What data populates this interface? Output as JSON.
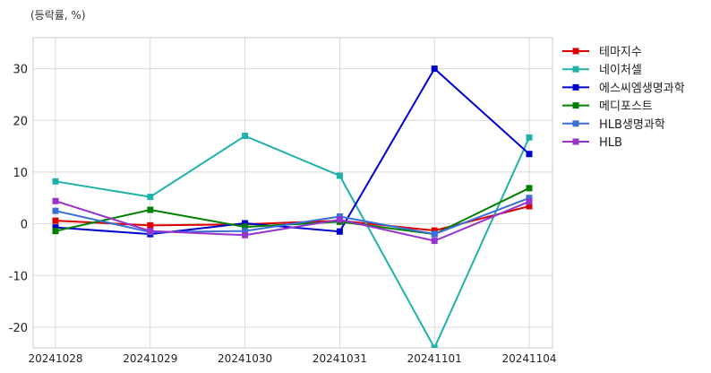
{
  "chart_data": {
    "type": "line",
    "unit_label": "(등락률, %)",
    "categories": [
      "20241028",
      "20241029",
      "20241030",
      "20241031",
      "20241101",
      "20241104"
    ],
    "ylim": [
      -24,
      36
    ],
    "yticks": [
      30,
      20,
      10,
      0,
      -10,
      -20
    ],
    "grid": true,
    "legend_position": "right",
    "series": [
      {
        "name": "테마지수",
        "color": "#dd0000",
        "values": [
          0.6,
          -0.3,
          -0.1,
          0.6,
          -1.3,
          3.4
        ]
      },
      {
        "name": "네이처셀",
        "color": "#20b2aa",
        "values": [
          8.2,
          5.2,
          17.0,
          9.3,
          -24.0,
          16.7
        ]
      },
      {
        "name": "에스씨엠생명과학",
        "color": "#0000cc",
        "values": [
          -0.7,
          -2.0,
          0.1,
          -1.5,
          30.0,
          13.5
        ]
      },
      {
        "name": "메디포스트",
        "color": "#008000",
        "values": [
          -1.4,
          2.7,
          -0.6,
          0.4,
          -2.0,
          6.9
        ]
      },
      {
        "name": "HLB생명과학",
        "color": "#3a6fd8",
        "values": [
          2.5,
          -1.6,
          -1.4,
          1.4,
          -2.0,
          5.0
        ]
      },
      {
        "name": "HLB",
        "color": "#9932cc",
        "values": [
          4.4,
          -1.4,
          -2.2,
          0.8,
          -3.3,
          4.3
        ]
      }
    ]
  }
}
